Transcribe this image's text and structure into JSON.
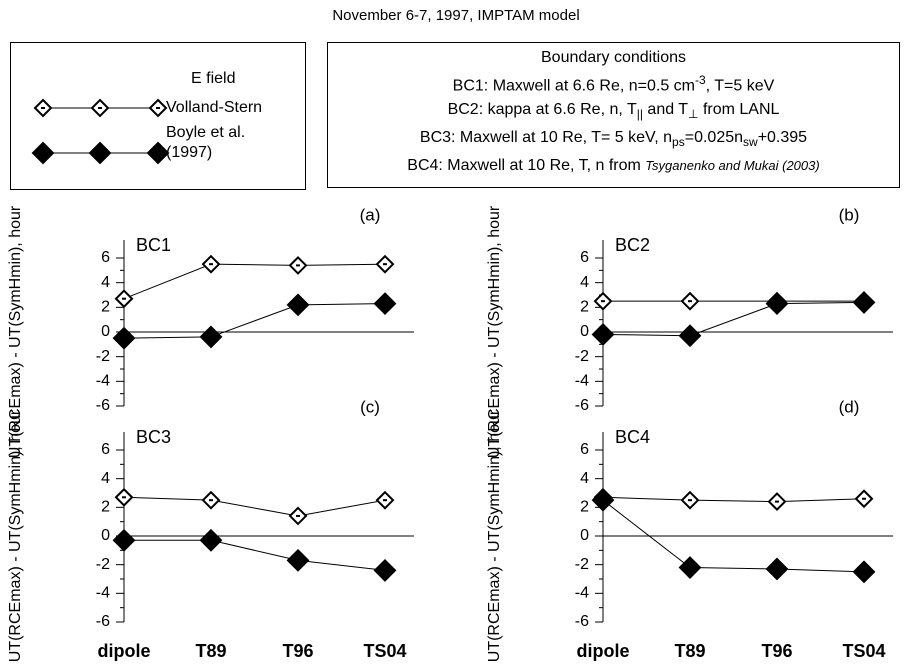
{
  "title": "November 6-7, 1997, IMPTAM model",
  "legend_title": "E field",
  "boundary_conditions": {
    "title": "Boundary conditions",
    "lines": [
      [
        "BC1: Maxwell at 6.6 Re, n=0.5 cm",
        {
          "sup": "-3"
        },
        ", T=5 keV"
      ],
      [
        "BC2: kappa at 6.6 Re, n, T",
        {
          "sub": "||"
        },
        " and T",
        {
          "sub": "⊥"
        },
        " from LANL"
      ],
      [
        "BC3: Maxwell at 10 Re, T= 5 keV, n",
        {
          "sub": "ps"
        },
        "=0.025n",
        {
          "sub": "sw"
        },
        "+0.395"
      ],
      [
        "BC4: Maxwell at 10 Re, T, n from ",
        {
          "italic": "Tsyganenko and Mukai (2003)"
        }
      ]
    ]
  },
  "chart_data": [
    {
      "type": "line",
      "panel": "(a)",
      "name": "BC1",
      "ylabel": "UT(RCEmax) - UT(SymHmin), hour",
      "categories": [
        null,
        null,
        null,
        null
      ],
      "series": [
        {
          "name": "Volland-Stern",
          "color": "#000000",
          "marker": "open-diamond",
          "values": [
            2.7,
            5.5,
            5.4,
            5.5
          ]
        },
        {
          "name": "Boyle et al. (1997)",
          "color": "#000000",
          "marker": "diamond",
          "values": [
            -0.5,
            -0.4,
            2.2,
            2.3
          ]
        }
      ],
      "ylim": [
        -6,
        6
      ],
      "yticks": [
        -6,
        -4,
        -2,
        0,
        2,
        4,
        6
      ],
      "yminorticks": [
        -5,
        -3,
        -1,
        1,
        3,
        5
      ]
    },
    {
      "type": "line",
      "panel": "(b)",
      "name": "BC2",
      "ylabel": "UT(RCEmax) - UT(SymHmin), hour",
      "categories": [
        null,
        null,
        null,
        null
      ],
      "series": [
        {
          "name": "Volland-Stern",
          "color": "#000000",
          "marker": "open-diamond",
          "values": [
            2.5,
            2.5,
            2.5,
            2.5
          ]
        },
        {
          "name": "Boyle et al. (1997)",
          "color": "#000000",
          "marker": "diamond",
          "values": [
            -0.2,
            -0.3,
            2.3,
            2.4
          ]
        }
      ],
      "ylim": [
        -6,
        6
      ],
      "yticks": [
        -6,
        -4,
        -2,
        0,
        2,
        4,
        6
      ],
      "yminorticks": [
        -5,
        -3,
        -1,
        1,
        3,
        5
      ]
    },
    {
      "type": "line",
      "panel": "(c)",
      "name": "BC3",
      "ylabel": "UT(RCEmax) - UT(SymHmin), hour",
      "categories": [
        "dipole",
        "T89",
        "T96",
        "TS04"
      ],
      "category_colors": [
        "#000000",
        "#ff0000",
        "#0000ff",
        "#00e000"
      ],
      "series": [
        {
          "name": "Volland-Stern",
          "color": "#000000",
          "marker": "open-diamond",
          "values": [
            2.7,
            2.5,
            1.4,
            2.5
          ]
        },
        {
          "name": "Boyle et al. (1997)",
          "color": "#000000",
          "marker": "diamond",
          "values": [
            -0.3,
            -0.3,
            -1.7,
            -2.4
          ]
        }
      ],
      "ylim": [
        -6,
        6
      ],
      "yticks": [
        -6,
        -4,
        -2,
        0,
        2,
        4,
        6
      ],
      "yminorticks": [
        -5,
        -3,
        -1,
        1,
        3,
        5
      ]
    },
    {
      "type": "line",
      "panel": "(d)",
      "name": "BC4",
      "ylabel": "UT(RCEmax) - UT(SymHmin), hour",
      "categories": [
        "dipole",
        "T89",
        "T96",
        "TS04"
      ],
      "category_colors": [
        "#000000",
        "#ff0000",
        "#0000ff",
        "#00e000"
      ],
      "series": [
        {
          "name": "Volland-Stern",
          "color": "#000000",
          "marker": "open-diamond",
          "values": [
            2.7,
            2.5,
            2.4,
            2.6
          ]
        },
        {
          "name": "Boyle et al. (1997)",
          "color": "#000000",
          "marker": "diamond",
          "values": [
            2.5,
            -2.2,
            -2.3,
            -2.5
          ]
        }
      ],
      "ylim": [
        -6,
        6
      ],
      "yticks": [
        -6,
        -4,
        -2,
        0,
        2,
        4,
        6
      ],
      "yminorticks": [
        -5,
        -3,
        -1,
        1,
        3,
        5
      ]
    }
  ]
}
